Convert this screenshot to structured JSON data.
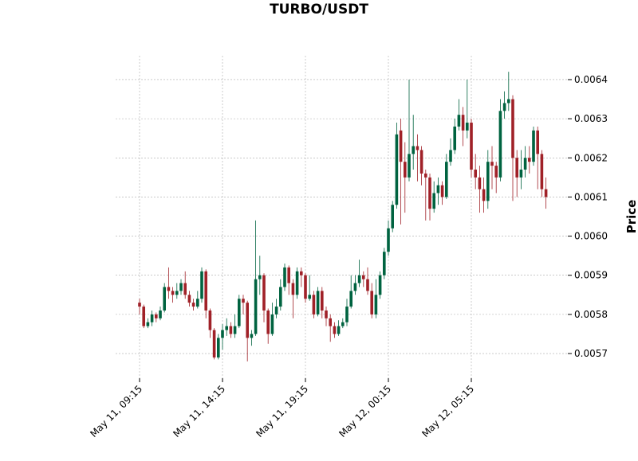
{
  "chart_data": {
    "type": "candlestick",
    "title": "TURBO/USDT",
    "y_label": "Price",
    "categories": [
      "May 11, 09:15",
      null,
      null,
      null,
      null,
      null,
      null,
      null,
      null,
      null,
      null,
      null,
      null,
      null,
      null,
      null,
      null,
      null,
      null,
      null,
      "May 11, 14:15",
      null,
      null,
      null,
      null,
      null,
      null,
      null,
      null,
      null,
      null,
      null,
      null,
      null,
      null,
      null,
      null,
      null,
      null,
      null,
      "May 11, 19:15",
      null,
      null,
      null,
      null,
      null,
      null,
      null,
      null,
      null,
      null,
      null,
      null,
      null,
      null,
      null,
      null,
      null,
      null,
      null,
      "May 12, 00:15",
      null,
      null,
      null,
      null,
      null,
      null,
      null,
      null,
      null,
      null,
      null,
      null,
      null,
      null,
      null,
      null,
      null,
      null,
      null,
      "May 12, 05:15",
      null,
      null,
      null,
      null,
      null,
      null,
      null,
      null,
      null,
      null,
      null,
      null,
      null,
      null,
      null,
      null,
      null,
      null
    ],
    "open": [
      0.00583,
      0.00582,
      0.00577,
      0.00578,
      0.0058,
      0.00579,
      0.00581,
      0.00587,
      0.00586,
      0.00585,
      0.00586,
      0.00588,
      0.00585,
      0.00583,
      0.00582,
      0.00584,
      0.00591,
      0.00581,
      0.00576,
      0.00569,
      0.00574,
      0.00576,
      0.00577,
      0.00575,
      0.00577,
      0.00584,
      0.00583,
      0.00574,
      0.00575,
      0.00589,
      0.0059,
      0.00581,
      0.00575,
      0.0058,
      0.00582,
      0.00587,
      0.00592,
      0.00588,
      0.00585,
      0.00591,
      0.0059,
      0.00584,
      0.00585,
      0.0058,
      0.00586,
      0.00581,
      0.00579,
      0.00577,
      0.00575,
      0.00577,
      0.00578,
      0.00582,
      0.00586,
      0.00588,
      0.0059,
      0.00589,
      0.00586,
      0.0058,
      0.00585,
      0.0059,
      0.00596,
      0.00602,
      0.00608,
      0.00627,
      0.00619,
      0.00615,
      0.00621,
      0.00623,
      0.00622,
      0.00616,
      0.00615,
      0.00607,
      0.00611,
      0.00613,
      0.0061,
      0.00619,
      0.00622,
      0.00628,
      0.00631,
      0.00627,
      0.00629,
      0.00617,
      0.00615,
      0.00612,
      0.00609,
      0.00619,
      0.00618,
      0.00615,
      0.00632,
      0.00634,
      0.00635,
      0.0062,
      0.00615,
      0.00617,
      0.0062,
      0.00619,
      0.00627,
      0.00621,
      0.00612
    ],
    "high": [
      0.00584,
      0.005825,
      0.00579,
      0.00581,
      0.005805,
      0.00582,
      0.00588,
      0.00592,
      0.00587,
      0.00588,
      0.00589,
      0.00591,
      0.00586,
      0.00584,
      0.00586,
      0.00592,
      0.005915,
      0.005815,
      0.005765,
      0.00575,
      0.005775,
      0.00579,
      0.00578,
      0.0058,
      0.00585,
      0.00585,
      0.005835,
      0.00576,
      0.00604,
      0.00595,
      0.005905,
      0.005815,
      0.00583,
      0.00584,
      0.00589,
      0.00593,
      0.005925,
      0.00589,
      0.00592,
      0.00592,
      0.005905,
      0.0059,
      0.00586,
      0.00587,
      0.00587,
      0.00582,
      0.0058,
      0.00578,
      0.005785,
      0.00579,
      0.00584,
      0.0059,
      0.0059,
      0.00594,
      0.00591,
      0.00592,
      0.00588,
      0.00589,
      0.00591,
      0.00597,
      0.00604,
      0.00609,
      0.00629,
      0.0063,
      0.00624,
      0.0064,
      0.00631,
      0.00626,
      0.00623,
      0.00617,
      0.00616,
      0.00614,
      0.00615,
      0.00614,
      0.00621,
      0.00625,
      0.0063,
      0.00635,
      0.00633,
      0.0064,
      0.0063,
      0.00621,
      0.00618,
      0.00615,
      0.00622,
      0.00623,
      0.00619,
      0.00635,
      0.00637,
      0.00642,
      0.00636,
      0.00622,
      0.00622,
      0.00623,
      0.00623,
      0.00628,
      0.00628,
      0.00622,
      0.00615
    ],
    "low": [
      0.0058,
      0.005765,
      0.005765,
      0.00577,
      0.00578,
      0.005785,
      0.005805,
      0.00584,
      0.00583,
      0.00584,
      0.00585,
      0.00584,
      0.00582,
      0.00581,
      0.005815,
      0.00583,
      0.00579,
      0.00574,
      0.005685,
      0.005685,
      0.00571,
      0.005745,
      0.00574,
      0.00574,
      0.005765,
      0.0058,
      0.00568,
      0.00572,
      0.005745,
      0.00585,
      0.00578,
      0.005725,
      0.005745,
      0.00579,
      0.00581,
      0.00586,
      0.00585,
      0.00579,
      0.00584,
      0.00587,
      0.00583,
      0.005835,
      0.00579,
      0.005795,
      0.00579,
      0.00577,
      0.00573,
      0.00574,
      0.005745,
      0.005765,
      0.00577,
      0.005815,
      0.00585,
      0.00587,
      0.00587,
      0.00585,
      0.00579,
      0.00579,
      0.00584,
      0.00589,
      0.00595,
      0.00601,
      0.00607,
      0.00603,
      0.00606,
      0.00614,
      0.00617,
      0.00614,
      0.00613,
      0.00604,
      0.00604,
      0.00606,
      0.00608,
      0.00608,
      0.006095,
      0.00618,
      0.00621,
      0.00627,
      0.00623,
      0.00625,
      0.00615,
      0.00612,
      0.00606,
      0.00606,
      0.00607,
      0.00612,
      0.00611,
      0.00614,
      0.0063,
      0.00632,
      0.00609,
      0.0061,
      0.00612,
      0.00615,
      0.00616,
      0.00618,
      0.00612,
      0.0061,
      0.00607
    ],
    "close": [
      0.00582,
      0.00577,
      0.00578,
      0.0058,
      0.00579,
      0.00581,
      0.00587,
      0.00586,
      0.00585,
      0.00586,
      0.00588,
      0.00585,
      0.00583,
      0.00582,
      0.00584,
      0.00591,
      0.00581,
      0.00576,
      0.00569,
      0.00574,
      0.00576,
      0.00577,
      0.00575,
      0.00577,
      0.00584,
      0.00583,
      0.00574,
      0.00575,
      0.00589,
      0.0059,
      0.00581,
      0.00575,
      0.0058,
      0.00582,
      0.00587,
      0.00592,
      0.00588,
      0.00585,
      0.00591,
      0.0059,
      0.00584,
      0.00585,
      0.0058,
      0.00586,
      0.00581,
      0.00579,
      0.00577,
      0.00575,
      0.00577,
      0.00578,
      0.00582,
      0.00586,
      0.00588,
      0.0059,
      0.00589,
      0.00586,
      0.0058,
      0.00585,
      0.0059,
      0.00596,
      0.00602,
      0.00608,
      0.00626,
      0.00619,
      0.00615,
      0.00621,
      0.00623,
      0.00622,
      0.00616,
      0.00615,
      0.00607,
      0.00611,
      0.00613,
      0.0061,
      0.00619,
      0.00622,
      0.00628,
      0.00631,
      0.00627,
      0.00629,
      0.00617,
      0.00615,
      0.00612,
      0.00609,
      0.00619,
      0.00618,
      0.00615,
      0.00632,
      0.00634,
      0.00635,
      0.0062,
      0.00615,
      0.00617,
      0.0062,
      0.00619,
      0.00627,
      0.00621,
      0.00612,
      0.0061
    ],
    "up_color": "#006340",
    "down_color": "#a02128",
    "ylim": [
      0.005637,
      0.006461
    ],
    "yticks": [
      0.0057,
      0.0058,
      0.0059,
      {
        "value": 0.006,
        "label": "0.0060"
      },
      0.0061,
      0.0062,
      0.0063,
      0.0064
    ],
    "grid": true
  }
}
